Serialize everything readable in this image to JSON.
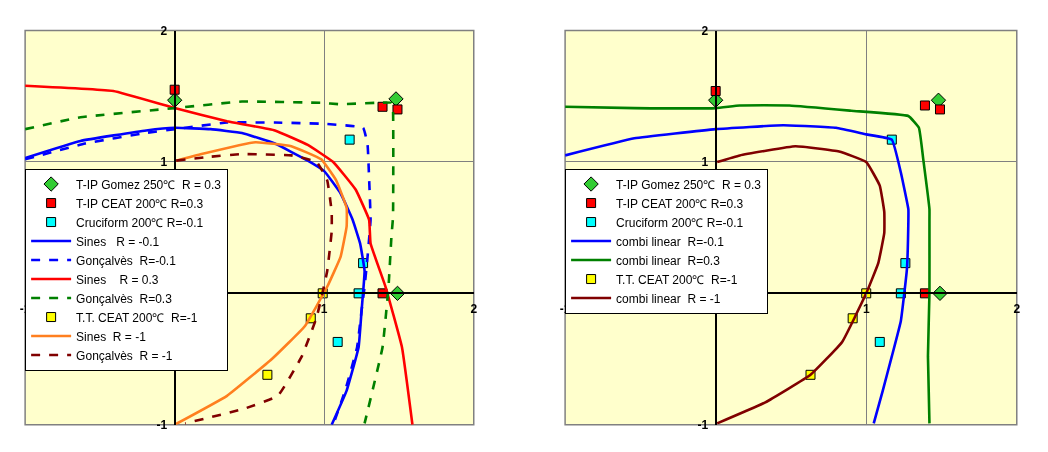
{
  "chart_data": [
    {
      "type": "scatter",
      "xlim": [
        -1,
        2
      ],
      "ylim": [
        -1,
        2
      ],
      "xticks": [
        -1,
        1,
        2
      ],
      "yticks": [
        -1,
        1,
        2
      ],
      "grid": true,
      "legend": "left",
      "series": [
        {
          "name": "T-IP Gomez 250℃  R = 0.3",
          "marker": "diamond",
          "color": "#33cc33",
          "x": [
            0,
            1.48,
            1.49
          ],
          "values": [
            1.47,
            1.48,
            0
          ]
        },
        {
          "name": "T-IP CEAT 200℃ R=0.3",
          "marker": "square",
          "color": "#ff0000",
          "x": [
            0,
            1.39,
            1.49,
            1.39
          ],
          "values": [
            1.55,
            1.42,
            1.4,
            0
          ]
        },
        {
          "name": "Cruciform 200℃ R=-0.1",
          "marker": "square",
          "color": "#00ffff",
          "x": [
            1.17,
            1.26,
            1.23,
            1.09
          ],
          "values": [
            1.17,
            0.23,
            0,
            -0.37
          ]
        },
        {
          "name": "Sines   R = -0.1",
          "type": "line",
          "line_style": "solid",
          "color": "#0000ff",
          "x": [
            -1.0,
            -0.63,
            -0.19,
            0,
            0.24,
            0.45,
            0.67,
            0.89,
            1.0,
            1.11,
            1.19,
            1.24,
            1.27,
            1.25,
            1.23,
            1.15,
            1.05
          ],
          "values": [
            1.03,
            1.16,
            1.24,
            1.26,
            1.25,
            1.22,
            1.14,
            1.01,
            0.93,
            0.76,
            0.56,
            0.38,
            0.17,
            -0.13,
            -0.41,
            -0.74,
            -1.0
          ]
        },
        {
          "name": "Gonçalvès  R=-0.1",
          "type": "line",
          "line_style": "dashed",
          "color": "#0000ff",
          "x": [
            -1.0,
            -0.6,
            -0.2,
            0,
            0.35,
            0.67,
            1.0,
            1.26,
            1.29,
            1.3,
            1.31,
            1.29,
            1.27,
            1.25,
            1.22,
            1.14,
            1.06
          ],
          "values": [
            1.02,
            1.14,
            1.22,
            1.25,
            1.3,
            1.3,
            1.29,
            1.26,
            1.13,
            0.88,
            0.56,
            0.28,
            0.05,
            -0.13,
            -0.41,
            -0.74,
            -1.0
          ]
        },
        {
          "name": "Sines    R = 0.3",
          "type": "line",
          "line_style": "solid",
          "color": "#ff0000",
          "x": [
            -1.0,
            -0.41,
            0,
            0.35,
            0.67,
            0.89,
            1.06,
            1.21,
            1.3,
            1.31,
            1.41,
            1.52,
            1.59
          ],
          "values": [
            1.58,
            1.54,
            1.41,
            1.31,
            1.24,
            1.13,
            1.0,
            0.79,
            0.56,
            0.38,
            0.05,
            -0.41,
            -1.0
          ]
        },
        {
          "name": "Gonçalvès  R=0.3",
          "type": "line",
          "line_style": "dashed",
          "color": "#008000",
          "x": [
            -1.0,
            -0.63,
            0,
            0.45,
            0.98,
            1.1,
            1.34,
            1.45,
            1.46,
            1.46,
            1.45,
            1.43,
            1.39,
            1.27
          ],
          "values": [
            1.25,
            1.34,
            1.41,
            1.46,
            1.45,
            1.44,
            1.45,
            1.45,
            1.4,
            0.58,
            0.44,
            0.05,
            -0.41,
            -0.99
          ]
        },
        {
          "name": "T.T. CEAT 200℃  R=-1",
          "marker": "square",
          "color": "#ffff00",
          "x": [
            0.99,
            0.91,
            0.62
          ],
          "values": [
            0,
            -0.19,
            -0.62
          ]
        },
        {
          "name": "Sines  R = -1",
          "type": "line",
          "line_style": "solid",
          "color": "#ff7f1f",
          "x": [
            0.01,
            0.18,
            0.54,
            0.78,
            0.98,
            1.08,
            1.15,
            1.15,
            1.11,
            1.02,
            0.87,
            0.65,
            0.35,
            0
          ],
          "values": [
            1.01,
            1.06,
            1.15,
            1.12,
            1.02,
            0.86,
            0.65,
            0.51,
            0.28,
            0.05,
            -0.25,
            -0.5,
            -0.78,
            -1.0
          ]
        },
        {
          "name": "Gonçalvès  R = -1",
          "type": "line",
          "line_style": "dashed",
          "color": "#800000",
          "x": [
            0.01,
            0.24,
            0.45,
            0.78,
            0.95,
            1.02,
            1.05,
            1.05,
            1.02,
            0.95,
            0.85,
            0.69,
            0.46,
            0.07
          ],
          "values": [
            1.01,
            1.04,
            1.06,
            1.05,
            1.0,
            0.86,
            0.62,
            0.47,
            0.17,
            -0.18,
            -0.48,
            -0.78,
            -0.88,
            -0.99
          ]
        }
      ]
    },
    {
      "type": "scatter",
      "xlim": [
        -1,
        2
      ],
      "ylim": [
        -1,
        2
      ],
      "xticks": [
        -1,
        1,
        2
      ],
      "yticks": [
        -1,
        1,
        2
      ],
      "grid": true,
      "legend": "left",
      "series": [
        {
          "name": "T-IP Gomez 250℃  R = 0.3",
          "marker": "diamond",
          "color": "#33cc33",
          "x": [
            0,
            1.48,
            1.49
          ],
          "values": [
            1.47,
            1.47,
            0
          ]
        },
        {
          "name": "T-IP CEAT 200℃ R=0.3",
          "marker": "square",
          "color": "#ff0000",
          "x": [
            0,
            1.39,
            1.49,
            1.39
          ],
          "values": [
            1.54,
            1.43,
            1.4,
            0
          ]
        },
        {
          "name": "Cruciform 200℃ R=-0.1",
          "marker": "square",
          "color": "#00ffff",
          "x": [
            1.17,
            1.26,
            1.23,
            1.09
          ],
          "values": [
            1.17,
            0.23,
            0,
            -0.37
          ]
        },
        {
          "name": "combi linear  R=-0.1",
          "type": "line",
          "line_style": "solid",
          "color": "#0000ff",
          "x": [
            -1.0,
            -0.54,
            0,
            0.45,
            0.8,
            1.0,
            1.17,
            1.23,
            1.28,
            1.28,
            1.27,
            1.23,
            1.17,
            1.11,
            1.05
          ],
          "values": [
            1.05,
            1.18,
            1.25,
            1.28,
            1.26,
            1.21,
            1.17,
            0.92,
            0.64,
            0.55,
            0.18,
            -0.21,
            -0.48,
            -0.74,
            -0.99
          ]
        },
        {
          "name": "combi linear  R=0.3",
          "type": "line",
          "line_style": "solid",
          "color": "#008000",
          "x": [
            -1.0,
            -0.54,
            0,
            0.16,
            0.49,
            0.9,
            1.28,
            1.35,
            1.38,
            1.42,
            1.42,
            1.42,
            1.41,
            1.42
          ],
          "values": [
            1.42,
            1.41,
            1.41,
            1.43,
            1.43,
            1.39,
            1.35,
            1.26,
            1.01,
            0.64,
            0.55,
            0,
            -0.48,
            -0.99
          ]
        },
        {
          "name": "T.T. CEAT 200℃  R=-1",
          "marker": "square",
          "color": "#ffff00",
          "x": [
            1.0,
            0.91,
            0.63
          ],
          "values": [
            0,
            -0.19,
            -0.62
          ]
        },
        {
          "name": "combi linear  R = -1",
          "type": "line",
          "line_style": "solid",
          "color": "#800000",
          "x": [
            0.01,
            0.16,
            0.53,
            0.82,
            1.0,
            1.09,
            1.12,
            1.12,
            1.08,
            1.0,
            0.84,
            0.63,
            0.33,
            0.01
          ],
          "values": [
            1.0,
            1.05,
            1.12,
            1.08,
            1.0,
            0.82,
            0.62,
            0.46,
            0.23,
            0,
            -0.37,
            -0.62,
            -0.83,
            -0.99
          ]
        }
      ]
    }
  ]
}
